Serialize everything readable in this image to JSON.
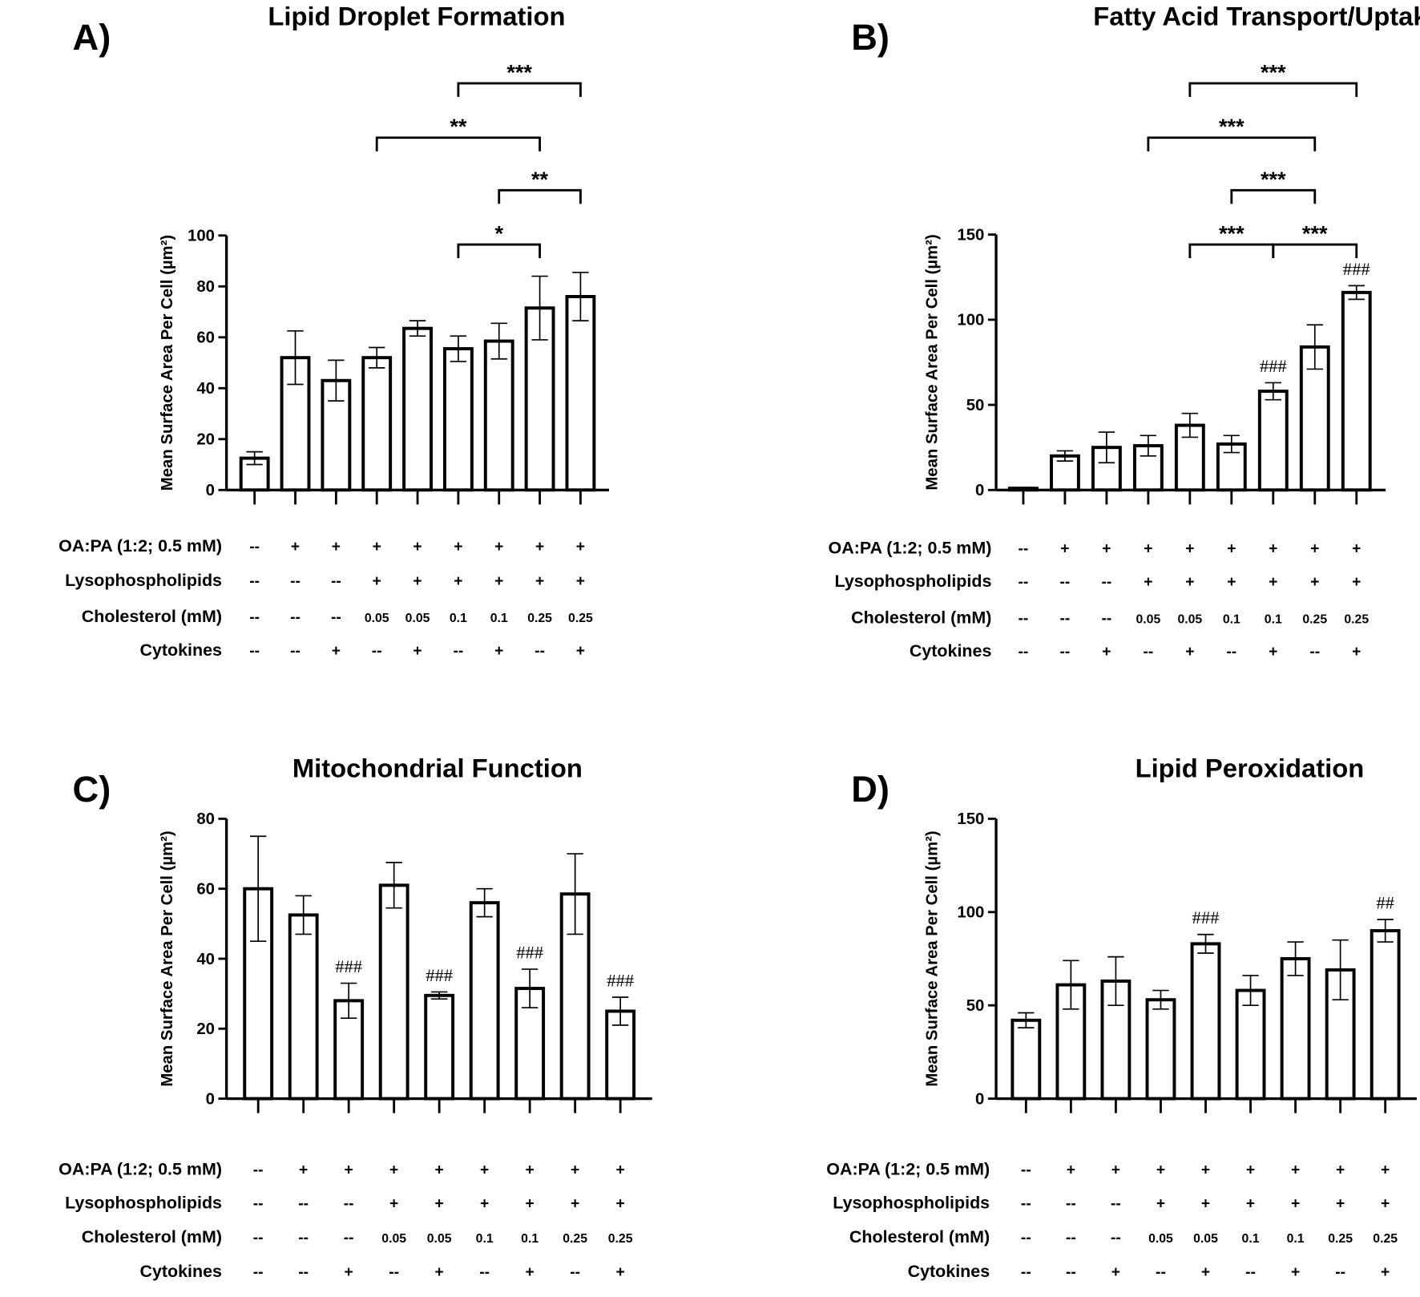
{
  "treatments": {
    "row_labels": [
      "OA:PA (1:2; 0.5 mM)",
      "Lysophospholipids",
      "Cholesterol (mM)",
      "Cytokines"
    ],
    "rows": [
      [
        "--",
        "+",
        "+",
        "+",
        "+",
        "+",
        "+",
        "+",
        "+"
      ],
      [
        "--",
        "--",
        "--",
        "+",
        "+",
        "+",
        "+",
        "+",
        "+"
      ],
      [
        "--",
        "--",
        "--",
        "0.05",
        "0.05",
        "0.1",
        "0.1",
        "0.25",
        "0.25"
      ],
      [
        "--",
        "--",
        "+",
        "--",
        "+",
        "--",
        "+",
        "--",
        "+"
      ]
    ]
  },
  "chart_data": [
    {
      "type": "bar",
      "panel": "A)",
      "title": "Lipid Droplet Formation",
      "ylabel": "Mean Surface Area Per Cell (µm²)",
      "ylim": [
        0,
        100
      ],
      "yticks": [
        "0",
        "20",
        "40",
        "60",
        "80",
        "100"
      ],
      "values": [
        12.5,
        52,
        43,
        52,
        63.5,
        55.5,
        58.5,
        71.5,
        76
      ],
      "errors": [
        2.5,
        10.5,
        8,
        4,
        3,
        5,
        7,
        12.5,
        9.5
      ],
      "brackets": [
        {
          "from": 6,
          "to": 9,
          "label": "***"
        },
        {
          "from": 4,
          "to": 8,
          "label": "**"
        },
        {
          "from": 7,
          "to": 9,
          "label": "**"
        },
        {
          "from": 6,
          "to": 8,
          "label": "*"
        }
      ],
      "marks": []
    },
    {
      "type": "bar",
      "panel": "B)",
      "title": "Fatty Acid Transport/Uptake",
      "ylabel": "Mean Surface Area Per Cell (µm²)",
      "ylim": [
        0,
        150
      ],
      "yticks": [
        "0",
        "50",
        "100",
        "150"
      ],
      "values": [
        1,
        20,
        25,
        26,
        38,
        27,
        58,
        84,
        116
      ],
      "errors": [
        0.5,
        3,
        9,
        6,
        7,
        5,
        5,
        13,
        4
      ],
      "brackets": [
        {
          "from": 5,
          "to": 9,
          "label": "***"
        },
        {
          "from": 4,
          "to": 8,
          "label": "***"
        },
        {
          "from": 6,
          "to": 8,
          "label": "***"
        },
        {
          "from": 5,
          "to": 7,
          "label": "***"
        },
        {
          "from": 7,
          "to": 9,
          "label": "***"
        }
      ],
      "marks": [
        {
          "bar": 7,
          "label": "###"
        },
        {
          "bar": 9,
          "label": "###"
        }
      ]
    },
    {
      "type": "bar",
      "panel": "C)",
      "title": "Mitochondrial Function",
      "ylabel": "Mean Surface Area Per Cell (µm²)",
      "ylim": [
        0,
        80
      ],
      "yticks": [
        "0",
        "20",
        "40",
        "60",
        "80"
      ],
      "values": [
        60,
        52.5,
        28,
        61,
        29.5,
        56,
        31.5,
        58.5,
        25
      ],
      "errors": [
        15,
        5.5,
        5,
        6.5,
        1,
        4,
        5.5,
        11.5,
        4
      ],
      "brackets": [],
      "marks": [
        {
          "bar": 3,
          "label": "###"
        },
        {
          "bar": 5,
          "label": "###"
        },
        {
          "bar": 7,
          "label": "###"
        },
        {
          "bar": 9,
          "label": "###"
        }
      ]
    },
    {
      "type": "bar",
      "panel": "D)",
      "title": "Lipid Peroxidation",
      "ylabel": "Mean Surface Area Per Cell (µm²)",
      "ylim": [
        0,
        150
      ],
      "yticks": [
        "0",
        "50",
        "100",
        "150"
      ],
      "values": [
        42,
        61,
        63,
        53,
        83,
        58,
        75,
        69,
        90
      ],
      "errors": [
        4,
        13,
        13,
        5,
        5,
        8,
        9,
        16,
        6
      ],
      "brackets": [],
      "marks": [
        {
          "bar": 5,
          "label": "###"
        },
        {
          "bar": 9,
          "label": "##"
        }
      ]
    }
  ]
}
